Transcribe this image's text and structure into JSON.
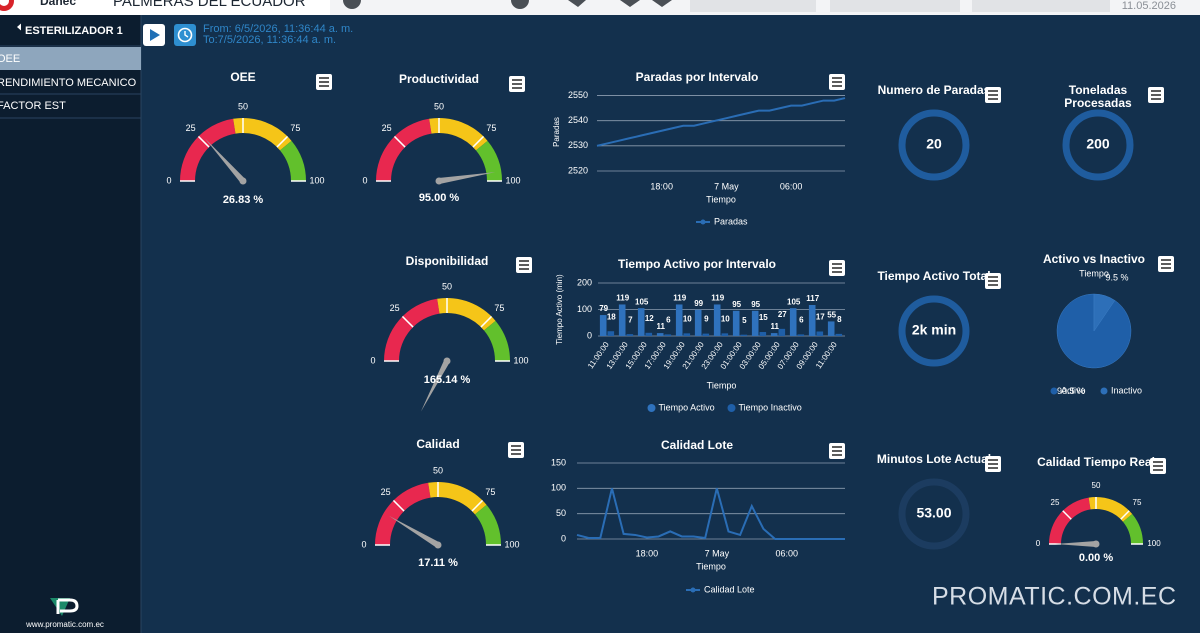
{
  "header": {
    "logo": "Danec",
    "company": "PALMERAS DEL ECUADOR",
    "date": "11.05.2026"
  },
  "sidebar": {
    "title": "ESTERILIZADOR 1",
    "items": [
      "OEE",
      "RENDIMIENTO MECANICO",
      "FACTOR EST"
    ],
    "footer": "www.promatic.com.ec"
  },
  "toolbar": {
    "from": "From: 6/5/2026, 11:36:44 a. m.",
    "to": "To:7/5/2026, 11:36:44 a. m."
  },
  "watermark": "PROMATIC.COM.EC",
  "chart_data": [
    {
      "type": "gauge",
      "title": "OEE",
      "value": 26.83,
      "value_label": "26.83 %",
      "ylim": [
        0,
        100
      ],
      "yticks": [
        0,
        25,
        50,
        75,
        100
      ],
      "bands": [
        {
          "from": 0,
          "to": 45,
          "color": "#e8284f"
        },
        {
          "from": 45,
          "to": 78,
          "color": "#f5c518"
        },
        {
          "from": 78,
          "to": 100,
          "color": "#62c02c"
        }
      ]
    },
    {
      "type": "gauge",
      "title": "Productividad",
      "value": 95.0,
      "value_label": "95.00 %",
      "ylim": [
        0,
        100
      ],
      "yticks": [
        0,
        25,
        50,
        75,
        100
      ],
      "bands": [
        {
          "from": 0,
          "to": 45,
          "color": "#e8284f"
        },
        {
          "from": 45,
          "to": 78,
          "color": "#f5c518"
        },
        {
          "from": 78,
          "to": 100,
          "color": "#62c02c"
        }
      ]
    },
    {
      "type": "gauge",
      "title": "Disponibilidad",
      "value": 165.14,
      "value_label": "165.14 %",
      "ylim": [
        0,
        100
      ],
      "yticks": [
        0,
        25,
        50,
        75,
        100
      ],
      "bands": [
        {
          "from": 0,
          "to": 45,
          "color": "#e8284f"
        },
        {
          "from": 45,
          "to": 78,
          "color": "#f5c518"
        },
        {
          "from": 78,
          "to": 100,
          "color": "#62c02c"
        }
      ]
    },
    {
      "type": "gauge",
      "title": "Calidad",
      "value": 17.11,
      "value_label": "17.11 %",
      "ylim": [
        0,
        100
      ],
      "yticks": [
        0,
        25,
        50,
        75,
        100
      ],
      "bands": [
        {
          "from": 0,
          "to": 45,
          "color": "#e8284f"
        },
        {
          "from": 45,
          "to": 78,
          "color": "#f5c518"
        },
        {
          "from": 78,
          "to": 100,
          "color": "#62c02c"
        }
      ]
    },
    {
      "type": "gauge",
      "title": "Calidad Tiempo Real",
      "value": 0.0,
      "value_label": "0.00 %",
      "ylim": [
        0,
        100
      ],
      "yticks": [
        0,
        25,
        50,
        75,
        100
      ],
      "bands": [
        {
          "from": 0,
          "to": 45,
          "color": "#e8284f"
        },
        {
          "from": 45,
          "to": 78,
          "color": "#f5c518"
        },
        {
          "from": 78,
          "to": 100,
          "color": "#62c02c"
        }
      ]
    },
    {
      "type": "ring",
      "title": "Numero de Paradas",
      "value": 20,
      "color": "#1f5c9e"
    },
    {
      "type": "ring",
      "title": "Toneladas Procesadas",
      "value": 200,
      "color": "#1f5c9e"
    },
    {
      "type": "ring",
      "title": "Tiempo Activo Total",
      "value": 2000,
      "value_label": "2k min",
      "color": "#1f5c9e"
    },
    {
      "type": "ring",
      "title": "Minutos Lote Actual",
      "value": 53,
      "value_label": "53.00",
      "color": "#1c3c60"
    },
    {
      "type": "pie",
      "title": "Activo vs Inactivo",
      "subtitle": "Tiempo",
      "categories": [
        "Activo",
        "Inactivo"
      ],
      "values": [
        90.5,
        9.5
      ],
      "value_labels": [
        "90.5 %",
        "9.5 %"
      ],
      "colors": [
        "#1f5fa8",
        "#2d6fb8"
      ]
    },
    {
      "type": "line",
      "title": "Paradas por Intervalo",
      "x_label": "Tiempo",
      "y_label": "Paradas",
      "categories": [
        null,
        null,
        null,
        null,
        null,
        null,
        "18:00",
        null,
        null,
        null,
        null,
        null,
        "7 May",
        null,
        null,
        null,
        null,
        null,
        "06:00",
        null,
        null,
        null,
        null,
        null
      ],
      "series": [
        {
          "name": "Paradas",
          "color": "#2a6db5",
          "values": [
            2530,
            2531,
            2532,
            2533,
            2534,
            2535,
            2536,
            2537,
            2538,
            2538,
            2539,
            2540,
            2541,
            2542,
            2543,
            2544,
            2544,
            2545,
            2546,
            2546,
            2547,
            2548,
            2548,
            2549
          ]
        }
      ],
      "ylim": [
        2518,
        2553
      ],
      "yticks": [
        2520,
        2530,
        2540,
        2550
      ],
      "grid": true
    },
    {
      "type": "bar",
      "title": "Tiempo Activo por Intervalo",
      "x_label": "Tiempo",
      "y_label": "Tiempo Activo (min)",
      "categories": [
        "11:00:00",
        "13:00:00",
        "15:00:00",
        "17:00:00",
        "19:00:00",
        "21:00:00",
        "23:00:00",
        "01:00:00",
        "03:00:00",
        "05:00:00",
        "07:00:00",
        "09:00:00",
        "11:00:00"
      ],
      "series": [
        {
          "name": "Tiempo Activo",
          "color": "#2f72bd",
          "values": [
            79,
            119,
            105,
            11,
            119,
            99,
            119,
            95,
            95,
            11,
            105,
            117,
            55
          ]
        },
        {
          "name": "Tiempo Inactivo",
          "color": "#1f5fa8",
          "values": [
            18,
            7,
            12,
            6,
            10,
            9,
            10,
            5,
            15,
            27,
            6,
            17,
            8
          ]
        }
      ],
      "ylim": [
        0,
        200
      ],
      "yticks": [
        0,
        100,
        200
      ],
      "grid": true
    },
    {
      "type": "line",
      "title": "Calidad Lote",
      "x_label": "Tiempo",
      "categories": [
        null,
        null,
        null,
        null,
        null,
        null,
        "18:00",
        null,
        null,
        null,
        null,
        null,
        "7 May",
        null,
        null,
        null,
        null,
        null,
        "06:00",
        null,
        null,
        null,
        null,
        null
      ],
      "series": [
        {
          "name": "Calidad Lote",
          "color": "#2a6db5",
          "values": [
            8,
            2,
            2,
            100,
            10,
            8,
            3,
            5,
            15,
            5,
            5,
            2,
            100,
            15,
            8,
            65,
            20,
            0,
            0,
            0,
            0,
            0,
            0,
            0
          ]
        }
      ],
      "ylim": [
        0,
        150
      ],
      "yticks": [
        0,
        50,
        100,
        150
      ],
      "grid": true
    }
  ]
}
